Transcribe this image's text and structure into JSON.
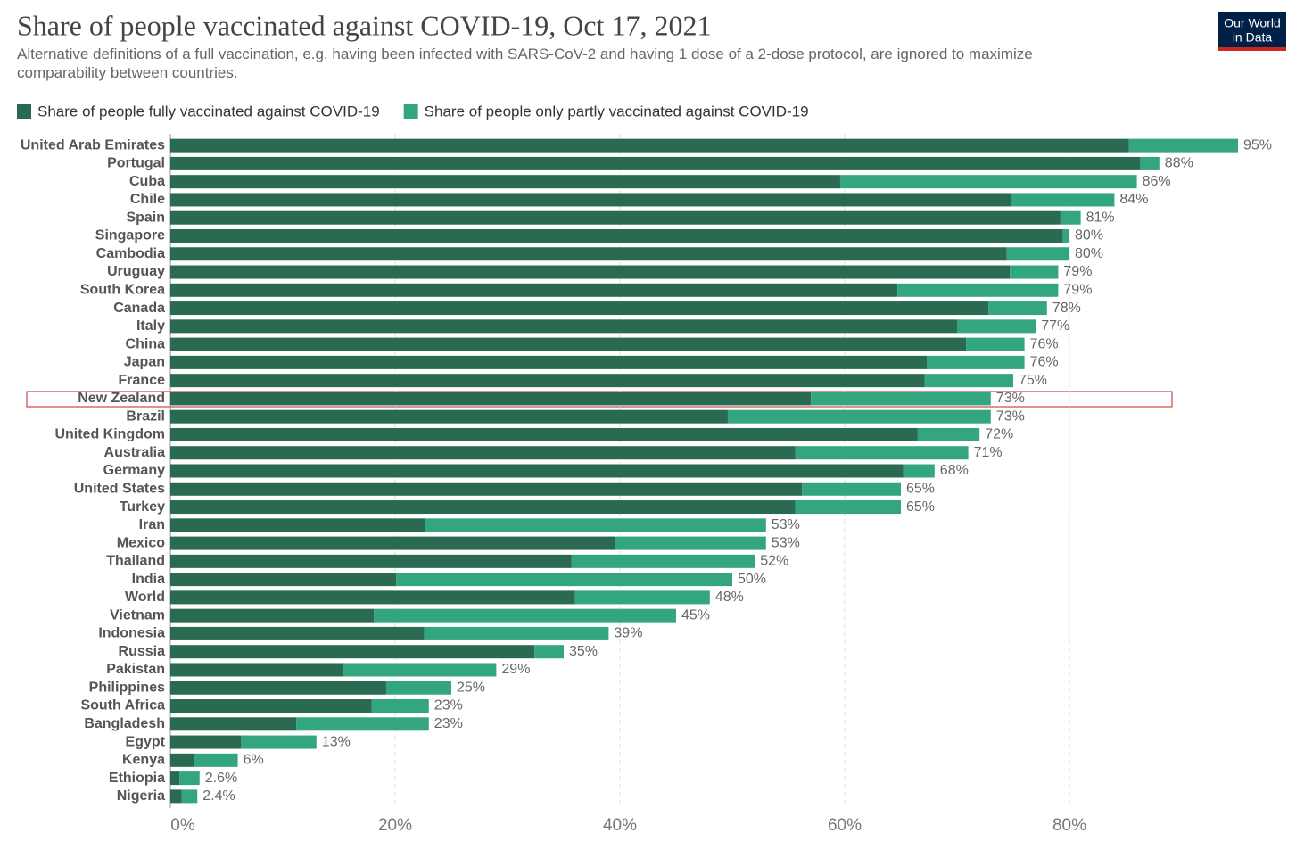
{
  "chart_data": {
    "type": "stacked-bar-horizontal",
    "title": "Share of people vaccinated against COVID-19, Oct 17, 2021",
    "subtitle": "Alternative definitions of a full vaccination, e.g. having been infected with SARS-CoV-2 and having 1 dose of a 2-dose protocol, are ignored to maximize comparability between countries.",
    "logo": [
      "Our World",
      "in Data"
    ],
    "categories": [
      "United Arab Emirates",
      "Portugal",
      "Cuba",
      "Chile",
      "Spain",
      "Singapore",
      "Cambodia",
      "Uruguay",
      "South Korea",
      "Canada",
      "Italy",
      "China",
      "Japan",
      "France",
      "New Zealand",
      "Brazil",
      "United Kingdom",
      "Australia",
      "Germany",
      "United States",
      "Turkey",
      "Iran",
      "Mexico",
      "Thailand",
      "India",
      "World",
      "Vietnam",
      "Indonesia",
      "Russia",
      "Pakistan",
      "Philippines",
      "South Africa",
      "Bangladesh",
      "Egypt",
      "Kenya",
      "Ethiopia",
      "Nigeria"
    ],
    "series": [
      {
        "name": "Share of people fully vaccinated against COVID-19",
        "color": "#2a6a50",
        "values": [
          85.3,
          86.3,
          59.6,
          74.8,
          79.2,
          79.4,
          74.4,
          74.7,
          64.7,
          72.8,
          70.0,
          70.8,
          67.3,
          67.1,
          57.0,
          49.6,
          66.5,
          55.6,
          65.2,
          56.2,
          55.6,
          22.7,
          39.6,
          35.7,
          20.1,
          36.0,
          18.1,
          22.6,
          32.4,
          15.4,
          19.2,
          17.9,
          11.2,
          6.3,
          2.1,
          0.8,
          1.0
        ]
      },
      {
        "name": "Share of people only partly vaccinated against COVID-19",
        "color": "#33a67f",
        "values": [
          9.7,
          1.7,
          26.4,
          9.2,
          1.8,
          0.6,
          5.6,
          4.3,
          14.3,
          5.2,
          7.0,
          5.2,
          8.7,
          7.9,
          16.0,
          23.4,
          5.5,
          15.4,
          2.8,
          8.8,
          9.4,
          30.3,
          13.4,
          16.3,
          29.9,
          12.0,
          26.9,
          16.4,
          2.6,
          13.6,
          5.8,
          5.1,
          11.8,
          6.7,
          3.9,
          1.8,
          1.4
        ]
      }
    ],
    "totals": [
      95,
      88,
      86,
      84,
      81,
      80,
      80,
      79,
      79,
      78,
      77,
      76,
      76,
      75,
      73,
      73,
      72,
      71,
      68,
      65,
      65,
      53,
      53,
      52,
      50,
      48,
      45,
      39,
      35,
      29,
      25,
      23,
      23,
      13,
      6,
      2.6,
      2.4
    ],
    "total_labels": [
      "95%",
      "88%",
      "86%",
      "84%",
      "81%",
      "80%",
      "80%",
      "79%",
      "79%",
      "78%",
      "77%",
      "76%",
      "76%",
      "75%",
      "73%",
      "73%",
      "72%",
      "71%",
      "68%",
      "65%",
      "65%",
      "53%",
      "53%",
      "52%",
      "50%",
      "48%",
      "45%",
      "39%",
      "35%",
      "29%",
      "25%",
      "23%",
      "23%",
      "13%",
      "6%",
      "2.6%",
      "2.4%"
    ],
    "xlim": [
      0,
      100
    ],
    "xticks": [
      {
        "value": 0,
        "label": "0%"
      },
      {
        "value": 20,
        "label": "20%"
      },
      {
        "value": 40,
        "label": "40%"
      },
      {
        "value": 60,
        "label": "60%"
      },
      {
        "value": 80,
        "label": "80%"
      }
    ],
    "grid": true
  }
}
